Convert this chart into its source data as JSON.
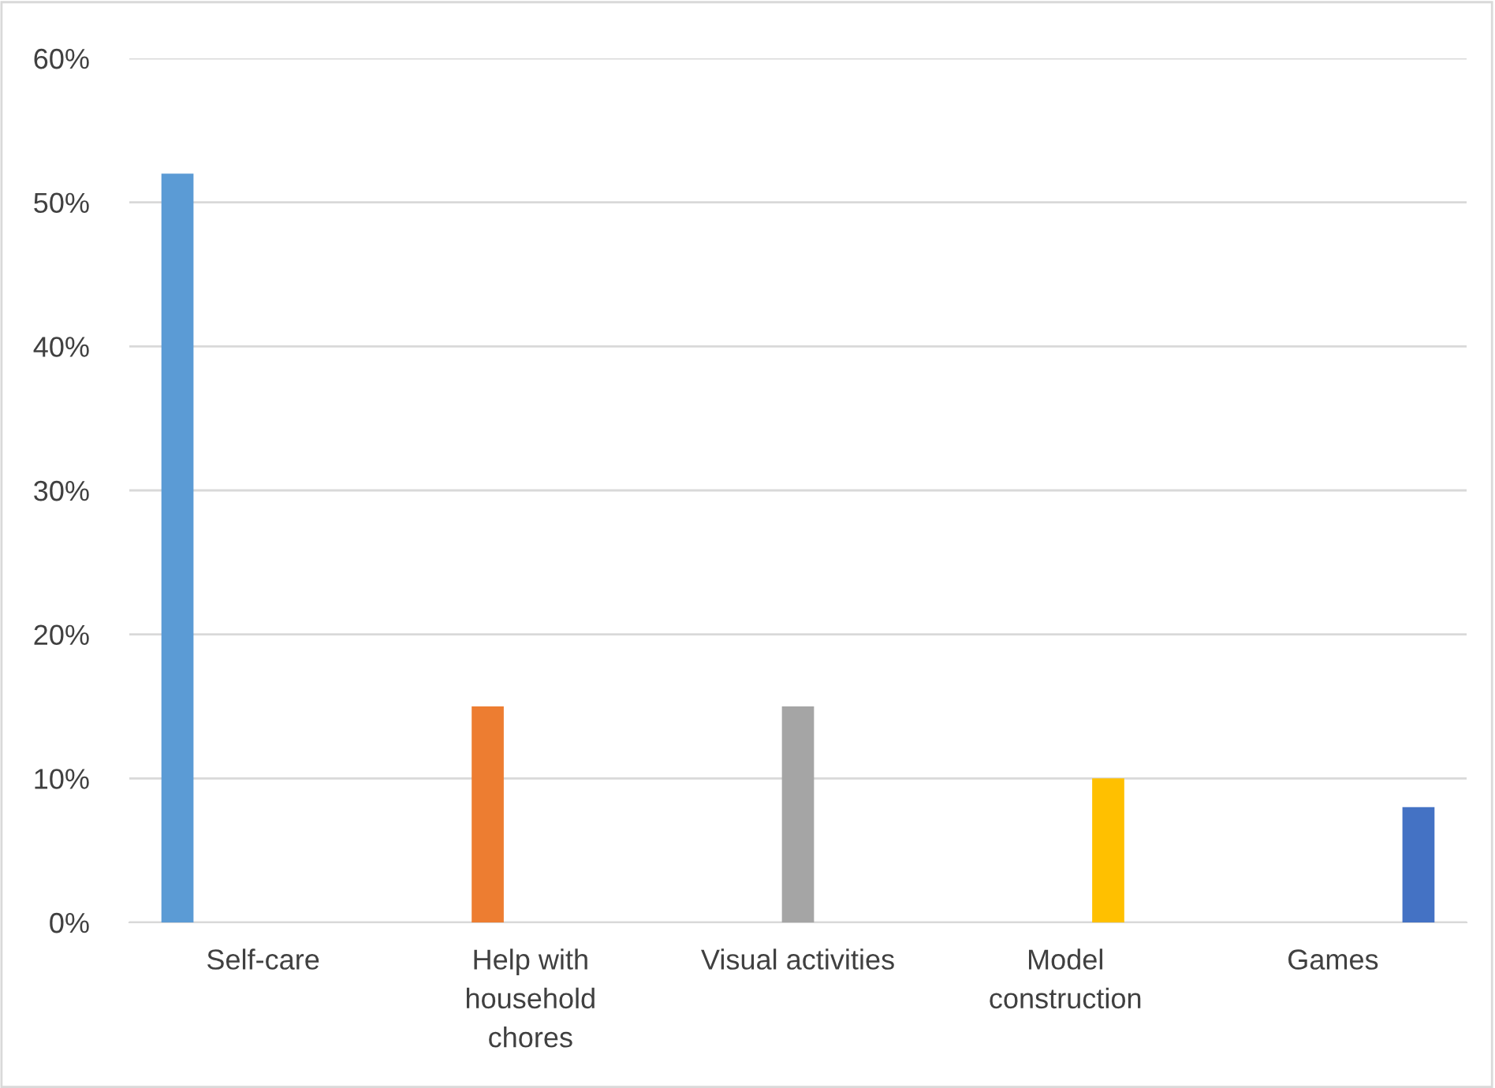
{
  "chart_data": {
    "type": "bar",
    "categories": [
      "Self-care",
      "Help with\nhousehold\nchores",
      "Visual activities",
      "Model\nconstruction",
      "Games"
    ],
    "series": [
      {
        "color": "#5b9bd5",
        "values": [
          52,
          null,
          null,
          null,
          null
        ]
      },
      {
        "color": "#ed7d31",
        "values": [
          null,
          15,
          null,
          null,
          null
        ]
      },
      {
        "color": "#a5a5a5",
        "values": [
          null,
          null,
          15,
          null,
          null
        ]
      },
      {
        "color": "#ffc000",
        "values": [
          null,
          null,
          null,
          10,
          null
        ]
      },
      {
        "color": "#4472c4",
        "values": [
          null,
          null,
          null,
          null,
          8
        ]
      }
    ],
    "ylim": [
      0,
      60
    ],
    "yticks": [
      {
        "value": 0,
        "label": "0%"
      },
      {
        "value": 10,
        "label": "10%"
      },
      {
        "value": 20,
        "label": "20%"
      },
      {
        "value": 30,
        "label": "30%"
      },
      {
        "value": 40,
        "label": "40%"
      },
      {
        "value": 50,
        "label": "50%"
      },
      {
        "value": 60,
        "label": "60%"
      }
    ],
    "grid": "y",
    "legend": false
  }
}
